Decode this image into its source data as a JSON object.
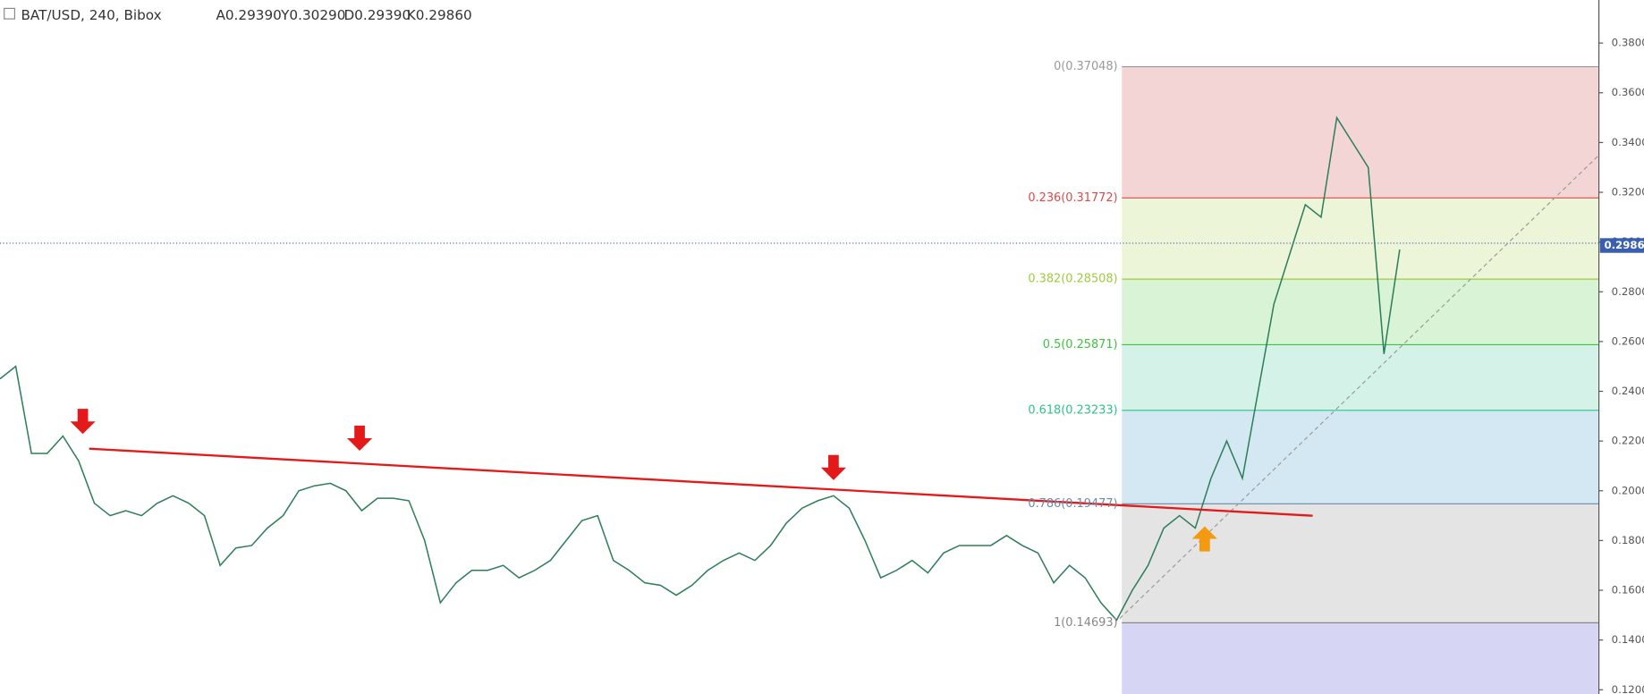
{
  "chart_data": {
    "type": "line",
    "title": "BAT/USD, 240, Bibox",
    "ohlc": [
      "A0.29390",
      "Y0.30290",
      "D0.29390",
      "K0.29860"
    ],
    "values": [
      0.245,
      0.25,
      0.215,
      0.215,
      0.222,
      0.212,
      0.195,
      0.19,
      0.192,
      0.19,
      0.195,
      0.198,
      0.195,
      0.19,
      0.17,
      0.177,
      0.178,
      0.185,
      0.19,
      0.2,
      0.202,
      0.203,
      0.2,
      0.192,
      0.197,
      0.197,
      0.196,
      0.18,
      0.155,
      0.163,
      0.168,
      0.168,
      0.17,
      0.165,
      0.168,
      0.172,
      0.18,
      0.188,
      0.19,
      0.172,
      0.168,
      0.163,
      0.162,
      0.158,
      0.162,
      0.168,
      0.172,
      0.175,
      0.172,
      0.178,
      0.187,
      0.193,
      0.196,
      0.198,
      0.193,
      0.18,
      0.165,
      0.168,
      0.172,
      0.167,
      0.175,
      0.178,
      0.178,
      0.178,
      0.182,
      0.178,
      0.175,
      0.163,
      0.17,
      0.165,
      0.155,
      0.148,
      0.16,
      0.17,
      0.185,
      0.19,
      0.185,
      0.205,
      0.22,
      0.205,
      0.24,
      0.275,
      0.295,
      0.315,
      0.31,
      0.35,
      0.34,
      0.33,
      0.255,
      0.297
    ],
    "color": "#2e7d5b",
    "ylim": [
      0.1183,
      0.3973
    ],
    "yticks": [
      {
        "value": 0.38,
        "label": "0.38000"
      },
      {
        "value": 0.36,
        "label": "0.36000"
      },
      {
        "value": 0.34,
        "label": "0.34000"
      },
      {
        "value": 0.32,
        "label": "0.32000"
      },
      {
        "value": 0.3,
        "label": "0.30000"
      },
      {
        "value": 0.28,
        "label": "0.28000"
      },
      {
        "value": 0.26,
        "label": "0.26000"
      },
      {
        "value": 0.24,
        "label": "0.24000"
      },
      {
        "value": 0.22,
        "label": "0.22000"
      },
      {
        "value": 0.2,
        "label": "0.20000"
      },
      {
        "value": 0.18,
        "label": "0.18000"
      },
      {
        "value": 0.16,
        "label": "0.16000"
      },
      {
        "value": 0.14,
        "label": "0.14000"
      },
      {
        "value": 0.12,
        "label": "0.12000"
      }
    ],
    "last_price": {
      "value": 0.2986,
      "label": "0.29860"
    },
    "fib_levels": [
      {
        "value": 0.37048,
        "label": "0(0.37048)",
        "color": "#999999",
        "zone": "#f4d5d5"
      },
      {
        "value": 0.31772,
        "label": "0.236(0.31772)",
        "color": "#e04848",
        "zone": "#ecf5d8"
      },
      {
        "value": 0.28508,
        "label": "0.382(0.28508)",
        "color": "#9ccc3c",
        "zone": "#d8f3d6"
      },
      {
        "value": 0.25871,
        "label": "0.5(0.25871)",
        "color": "#3cc43c",
        "zone": "#d4f2e8"
      },
      {
        "value": 0.23233,
        "label": "0.618(0.23233)",
        "color": "#2dc38a",
        "zone": "#d4e8f4"
      },
      {
        "value": 0.19477,
        "label": "0.786(0.19477)",
        "color": "#6a8aa8",
        "zone": "#e4e4e4"
      },
      {
        "value": 0.14693,
        "label": "1(0.14693)",
        "color": "#888888",
        "zone": "#d6d6f4"
      }
    ]
  }
}
